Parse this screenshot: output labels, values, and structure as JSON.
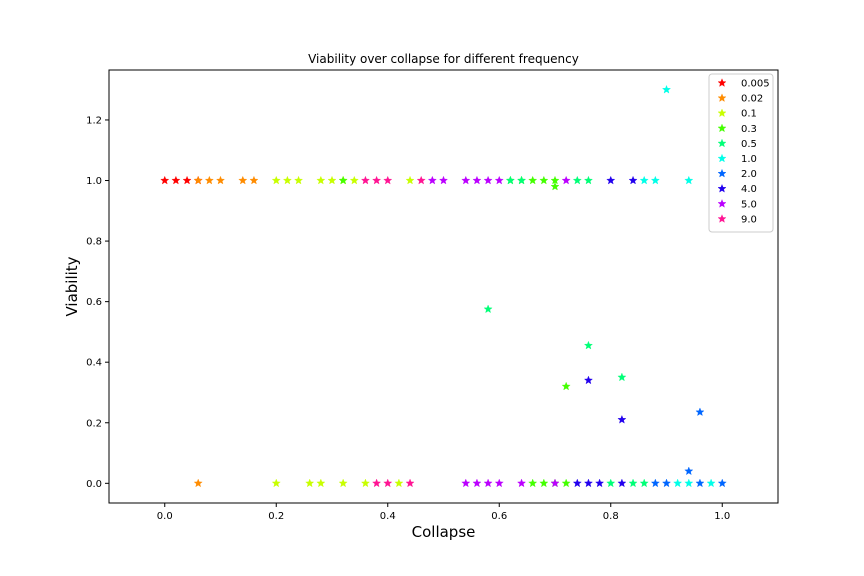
{
  "chart_data": {
    "type": "scatter",
    "title": "Viability over collapse for different frequency",
    "xlabel": "Collapse",
    "ylabel": "Viability",
    "xlim": [
      -0.1,
      1.1
    ],
    "ylim": [
      -0.065,
      1.365
    ],
    "xticks": [
      "0.0",
      "0.2",
      "0.4",
      "0.6",
      "0.8",
      "1.0"
    ],
    "yticks": [
      "0.0",
      "0.2",
      "0.4",
      "0.6",
      "0.8",
      "1.0",
      "1.2"
    ],
    "grid": false,
    "legend_position": "top-right",
    "marker": "star",
    "series": [
      {
        "name": "0.005",
        "color": "#ff0000",
        "points": [
          [
            0.0,
            1
          ],
          [
            0.02,
            1
          ],
          [
            0.04,
            1
          ],
          [
            0.06,
            1
          ]
        ]
      },
      {
        "name": "0.02",
        "color": "#ff8c00",
        "points": [
          [
            0.06,
            1
          ],
          [
            0.08,
            1
          ],
          [
            0.1,
            1
          ],
          [
            0.14,
            1
          ],
          [
            0.16,
            1
          ],
          [
            0.06,
            0
          ]
        ]
      },
      {
        "name": "0.1",
        "color": "#c8ff00",
        "points": [
          [
            0.2,
            1
          ],
          [
            0.22,
            1
          ],
          [
            0.24,
            1
          ],
          [
            0.28,
            1
          ],
          [
            0.3,
            1
          ],
          [
            0.32,
            1
          ],
          [
            0.34,
            1
          ],
          [
            0.44,
            1
          ],
          [
            0.2,
            0
          ],
          [
            0.26,
            0
          ],
          [
            0.28,
            0
          ],
          [
            0.32,
            0
          ],
          [
            0.36,
            0
          ],
          [
            0.42,
            0
          ]
        ]
      },
      {
        "name": "0.3",
        "color": "#44ff00",
        "points": [
          [
            0.32,
            1
          ],
          [
            0.62,
            1
          ],
          [
            0.64,
            1
          ],
          [
            0.66,
            1
          ],
          [
            0.68,
            1
          ],
          [
            0.7,
            1
          ],
          [
            0.7,
            0.98
          ],
          [
            0.72,
            0.32
          ],
          [
            0.66,
            0
          ],
          [
            0.68,
            0
          ],
          [
            0.7,
            0
          ],
          [
            0.72,
            0
          ]
        ]
      },
      {
        "name": "0.5",
        "color": "#00ff77",
        "points": [
          [
            0.62,
            1
          ],
          [
            0.64,
            1
          ],
          [
            0.74,
            1
          ],
          [
            0.76,
            1
          ],
          [
            0.58,
            0.575
          ],
          [
            0.76,
            0.455
          ],
          [
            0.82,
            0.35
          ],
          [
            0.8,
            0
          ],
          [
            0.84,
            0
          ],
          [
            0.86,
            0
          ]
        ]
      },
      {
        "name": "1.0",
        "color": "#00ffe8",
        "points": [
          [
            0.86,
            1
          ],
          [
            0.88,
            1
          ],
          [
            0.94,
            1
          ],
          [
            0.9,
            1.3
          ],
          [
            0.92,
            0
          ],
          [
            0.94,
            0
          ],
          [
            0.98,
            0
          ]
        ]
      },
      {
        "name": "2.0",
        "color": "#0066ff",
        "points": [
          [
            0.96,
            0.235
          ],
          [
            0.94,
            0.04
          ],
          [
            0.88,
            0
          ],
          [
            0.9,
            0
          ],
          [
            0.96,
            0
          ],
          [
            1.0,
            0
          ]
        ]
      },
      {
        "name": "4.0",
        "color": "#2200ee",
        "points": [
          [
            0.8,
            1
          ],
          [
            0.84,
            1
          ],
          [
            0.76,
            0.34
          ],
          [
            0.82,
            0.21
          ],
          [
            0.74,
            0
          ],
          [
            0.76,
            0
          ],
          [
            0.78,
            0
          ],
          [
            0.82,
            0
          ]
        ]
      },
      {
        "name": "5.0",
        "color": "#bb00ff",
        "points": [
          [
            0.48,
            1
          ],
          [
            0.5,
            1
          ],
          [
            0.54,
            1
          ],
          [
            0.56,
            1
          ],
          [
            0.58,
            1
          ],
          [
            0.6,
            1
          ],
          [
            0.72,
            1
          ],
          [
            0.54,
            0
          ],
          [
            0.56,
            0
          ],
          [
            0.58,
            0
          ],
          [
            0.6,
            0
          ],
          [
            0.64,
            0
          ],
          [
            0.7,
            0
          ]
        ]
      },
      {
        "name": "9.0",
        "color": "#ff1493",
        "points": [
          [
            0.36,
            1
          ],
          [
            0.38,
            1
          ],
          [
            0.4,
            1
          ],
          [
            0.46,
            1
          ],
          [
            0.38,
            0
          ],
          [
            0.4,
            0
          ],
          [
            0.44,
            0
          ]
        ]
      }
    ]
  }
}
